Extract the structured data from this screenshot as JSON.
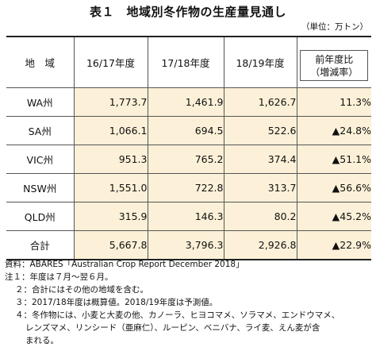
{
  "title": "表１　地域別冬作物の生産量見通し",
  "unit": "（単位：万トン）",
  "table": {
    "headers": {
      "region": "地　域",
      "col1": "16/17年度",
      "col2": "17/18年度",
      "col3": "18/19年度",
      "change_line1": "前年度比",
      "change_line2": "（増減率）"
    },
    "rows": [
      {
        "region": "WA州",
        "v1": "1,773.7",
        "v2": "1,461.9",
        "v3": "1,626.7",
        "change": "11.3%"
      },
      {
        "region": "SA州",
        "v1": "1,066.1",
        "v2": "694.5",
        "v3": "522.6",
        "change": "▲24.8%"
      },
      {
        "region": "VIC州",
        "v1": "951.3",
        "v2": "765.2",
        "v3": "374.4",
        "change": "▲51.1%"
      },
      {
        "region": "NSW州",
        "v1": "1,551.0",
        "v2": "722.8",
        "v3": "313.7",
        "change": "▲56.6%"
      },
      {
        "region": "QLD州",
        "v1": "315.9",
        "v2": "146.3",
        "v3": "80.2",
        "change": "▲45.2%"
      }
    ],
    "total": {
      "region": "合計",
      "v1": "5,667.8",
      "v2": "3,796.3",
      "v3": "2,926.8",
      "change": "▲22.9%"
    }
  },
  "notes": {
    "source": "資料：ABARES「Australian Crop Report December 2018」",
    "note1": "注１：年度は７月～翌６月。",
    "note2": "２：合計にはその他の地域を含む。",
    "note3": "３：2017/18年度は概算値。2018/19年度は予測値。",
    "note4_line1": "４：冬作物には、小麦と大麦の他、カノーラ、ヒヨコマメ、ソラマメ、エンドウマメ、",
    "note4_line2": "レンズマメ、リンシード（亜麻仁）、ルーピン、ベニバナ、ライ麦、えん麦が含",
    "note4_line3": "まれる。"
  },
  "colors": {
    "data_cell_background": "#fcf1d8",
    "border": "#555555"
  }
}
